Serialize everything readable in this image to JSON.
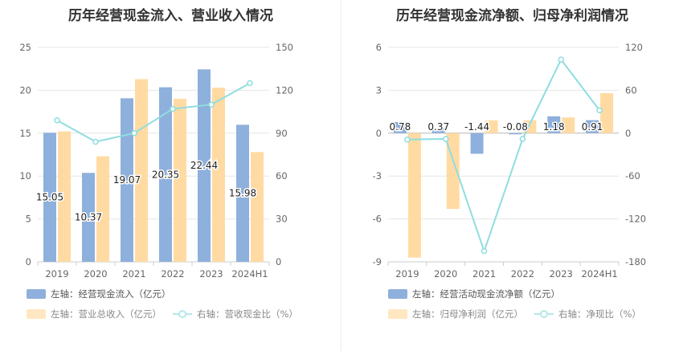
{
  "colors": {
    "bar1": "#8eb0dc",
    "bar2": "#ffdba3",
    "line": "#8fdde0",
    "grid": "#e6e6e6",
    "axis_text": "#666666"
  },
  "chart_data": [
    {
      "type": "bar",
      "title": "历年经营现金流入、营业收入情况",
      "categories": [
        "2019",
        "2020",
        "2021",
        "2022",
        "2023",
        "2024H1"
      ],
      "y_left_ticks": [
        "0",
        "5",
        "10",
        "15",
        "20",
        "25"
      ],
      "y_right_ticks": [
        "0",
        "30",
        "60",
        "90",
        "120",
        "150"
      ],
      "ylim_left": [
        0,
        25
      ],
      "ylim_right": [
        0,
        150
      ],
      "series": [
        {
          "name": "左轴：经营现金流入（亿元）",
          "kind": "bar",
          "axis": "left",
          "values": [
            15.05,
            10.37,
            19.07,
            20.35,
            22.44,
            15.98
          ],
          "labels": [
            "15.05",
            "10.37",
            "19.07",
            "20.35",
            "22.44",
            "15.98"
          ]
        },
        {
          "name": "左轴：营业总收入（亿元）",
          "kind": "bar",
          "axis": "left",
          "values": [
            15.2,
            12.3,
            21.3,
            19.0,
            20.3,
            12.8
          ]
        },
        {
          "name": "右轴：营收现金比（%）",
          "kind": "line",
          "axis": "right",
          "values": [
            99,
            84,
            90,
            107,
            110,
            125
          ]
        }
      ]
    },
    {
      "type": "bar",
      "title": "历年经营现金流净额、归母净利润情况",
      "categories": [
        "2019",
        "2020",
        "2021",
        "2022",
        "2023",
        "2024H1"
      ],
      "y_left_ticks": [
        "-9",
        "-6",
        "-3",
        "0",
        "3",
        "6"
      ],
      "y_right_ticks": [
        "-180",
        "-120",
        "-60",
        "0",
        "60",
        "120"
      ],
      "ylim_left": [
        -9,
        6
      ],
      "ylim_right": [
        -180,
        120
      ],
      "series": [
        {
          "name": "左轴：经营活动现金流净额（亿元）",
          "kind": "bar",
          "axis": "left",
          "values": [
            0.78,
            0.37,
            -1.44,
            -0.08,
            1.18,
            0.91
          ],
          "labels": [
            "0.78",
            "0.37",
            "-1.44",
            "-0.08",
            "1.18",
            "0.91"
          ]
        },
        {
          "name": "左轴：归母净利润（亿元）",
          "kind": "bar",
          "axis": "left",
          "values": [
            -8.7,
            -5.3,
            0.9,
            0.9,
            1.1,
            2.8
          ]
        },
        {
          "name": "右轴：净现比（%）",
          "kind": "line",
          "axis": "right",
          "values": [
            -9,
            -8,
            -165,
            -8,
            103,
            32
          ]
        }
      ]
    }
  ]
}
